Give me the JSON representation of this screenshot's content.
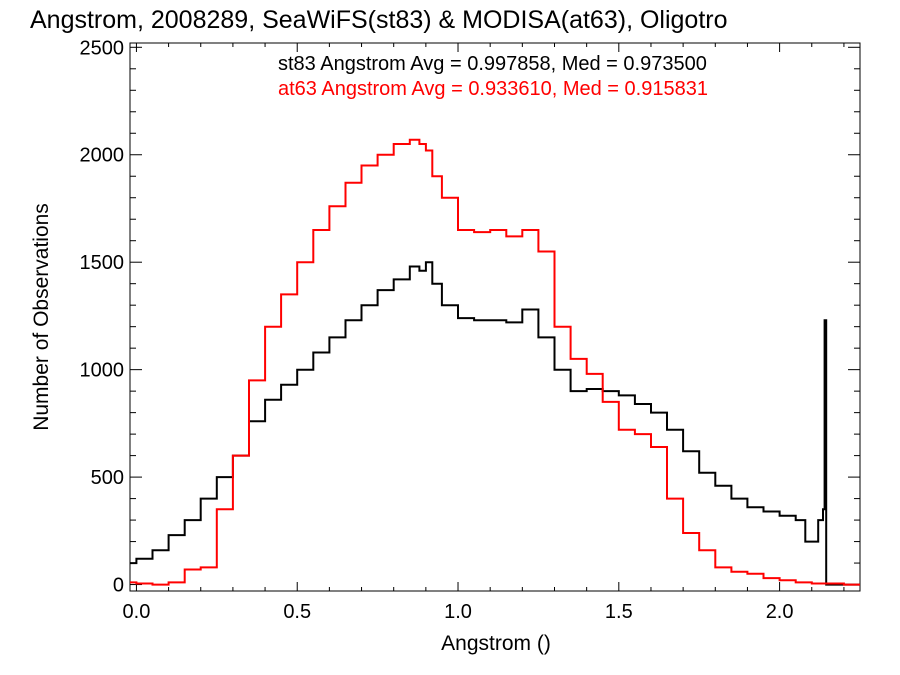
{
  "chart_data": {
    "type": "line",
    "title": "Angstrom, 2008289, SeaWiFS(st83) & MODISA(at63), Oligotro",
    "xlabel": "Angstrom ()",
    "ylabel": "Number of Observations",
    "xlim": [
      -0.02,
      2.25
    ],
    "ylim": [
      -30,
      2520
    ],
    "x_ticks": [
      0.0,
      0.5,
      1.0,
      1.5,
      2.0
    ],
    "x_tick_labels": [
      "0.0",
      "0.5",
      "1.0",
      "1.5",
      "2.0"
    ],
    "y_ticks": [
      0,
      500,
      1000,
      1500,
      2000,
      2500
    ],
    "y_tick_labels": [
      "0",
      "500",
      "1000",
      "1500",
      "2000",
      "2500"
    ],
    "grid": false,
    "step": true,
    "annotations": [
      {
        "text": "st83 Angstrom Avg = 0.997858, Med = 0.973500",
        "color": "#000000"
      },
      {
        "text": "at63 Angstrom Avg = 0.933610, Med = 0.915831",
        "color": "#ff0000"
      }
    ],
    "series": [
      {
        "color": "#000000",
        "x": [
          -0.02,
          0.0,
          0.05,
          0.1,
          0.15,
          0.2,
          0.25,
          0.3,
          0.35,
          0.4,
          0.45,
          0.5,
          0.55,
          0.6,
          0.65,
          0.7,
          0.75,
          0.8,
          0.85,
          0.88,
          0.9,
          0.92,
          0.95,
          1.0,
          1.05,
          1.1,
          1.15,
          1.2,
          1.25,
          1.3,
          1.35,
          1.4,
          1.45,
          1.5,
          1.55,
          1.6,
          1.65,
          1.7,
          1.75,
          1.8,
          1.85,
          1.9,
          1.95,
          2.0,
          2.05,
          2.08,
          2.1,
          2.12,
          2.135,
          2.14,
          2.145,
          2.2,
          2.25
        ],
        "y": [
          100,
          120,
          160,
          230,
          300,
          400,
          500,
          600,
          760,
          860,
          930,
          1000,
          1080,
          1150,
          1230,
          1300,
          1370,
          1420,
          1480,
          1460,
          1500,
          1400,
          1300,
          1240,
          1230,
          1230,
          1220,
          1280,
          1150,
          1000,
          900,
          910,
          900,
          880,
          840,
          800,
          720,
          620,
          520,
          460,
          400,
          360,
          340,
          320,
          300,
          200,
          200,
          300,
          350,
          1230,
          0,
          0,
          0
        ]
      },
      {
        "color": "#ff0000",
        "x": [
          -0.02,
          0.0,
          0.05,
          0.1,
          0.15,
          0.2,
          0.25,
          0.3,
          0.35,
          0.4,
          0.45,
          0.5,
          0.55,
          0.6,
          0.65,
          0.7,
          0.75,
          0.8,
          0.85,
          0.88,
          0.9,
          0.92,
          0.95,
          1.0,
          1.05,
          1.1,
          1.15,
          1.2,
          1.25,
          1.3,
          1.35,
          1.4,
          1.45,
          1.5,
          1.55,
          1.6,
          1.65,
          1.7,
          1.75,
          1.8,
          1.85,
          1.9,
          1.95,
          2.0,
          2.05,
          2.1,
          2.15,
          2.2,
          2.25
        ],
        "y": [
          10,
          5,
          0,
          10,
          70,
          80,
          350,
          600,
          950,
          1200,
          1350,
          1500,
          1650,
          1760,
          1870,
          1950,
          2000,
          2050,
          2070,
          2050,
          2020,
          1900,
          1800,
          1650,
          1640,
          1650,
          1620,
          1650,
          1550,
          1200,
          1050,
          980,
          850,
          720,
          700,
          640,
          400,
          240,
          160,
          80,
          60,
          50,
          30,
          20,
          10,
          5,
          5,
          0,
          0
        ]
      }
    ]
  }
}
